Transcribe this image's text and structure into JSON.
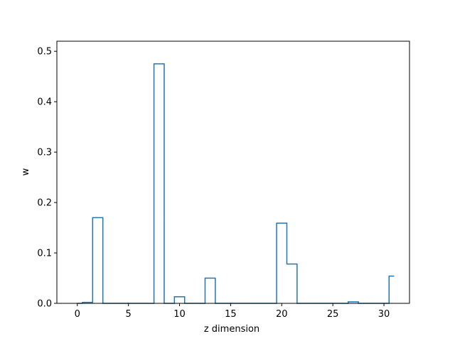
{
  "chart_data": {
    "type": "line",
    "drawstyle": "steps-mid",
    "xlabel": "z dimension",
    "ylabel": "w",
    "xlim": [
      -2.0,
      32.5
    ],
    "ylim": [
      0,
      0.52
    ],
    "x_ticks": [
      0,
      5,
      10,
      15,
      20,
      25,
      30
    ],
    "y_ticks": [
      0.0,
      0.1,
      0.2,
      0.3,
      0.4,
      0.5
    ],
    "x_tick_labels": [
      "0",
      "5",
      "10",
      "15",
      "20",
      "25",
      "30"
    ],
    "y_tick_labels": [
      "0.0",
      "0.1",
      "0.2",
      "0.3",
      "0.4",
      "0.5"
    ],
    "grid": false,
    "series": [
      {
        "color": "#1f77b4",
        "x": [
          0,
          1,
          2,
          3,
          4,
          5,
          6,
          7,
          8,
          9,
          10,
          11,
          12,
          13,
          14,
          15,
          16,
          17,
          18,
          19,
          20,
          21,
          22,
          23,
          24,
          25,
          26,
          27,
          28,
          29,
          30,
          31
        ],
        "values": [
          0.0,
          0.002,
          0.17,
          0.0,
          0.0,
          0.0,
          0.0,
          0.0,
          0.475,
          0.0,
          0.013,
          0.0,
          0.0,
          0.05,
          0.0,
          0.0,
          0.0,
          0.0,
          0.0,
          0.0,
          0.159,
          0.078,
          0.0,
          0.0,
          0.0,
          0.0,
          0.0,
          0.003,
          0.0,
          0.0,
          0.0,
          0.054
        ]
      }
    ]
  }
}
